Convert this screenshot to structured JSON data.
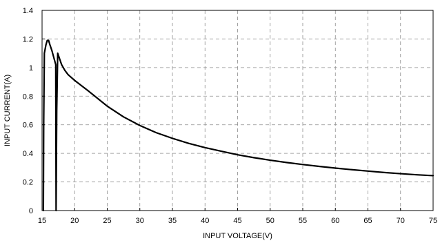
{
  "chart_data": {
    "type": "line",
    "title": "",
    "xlabel": "INPUT VOLTAGE(V)",
    "ylabel": "INPUT CURRENT(A)",
    "xlim": [
      15,
      75
    ],
    "ylim": [
      0,
      1.4
    ],
    "x_ticks": [
      15,
      20,
      25,
      30,
      35,
      40,
      45,
      50,
      55,
      60,
      65,
      70,
      75
    ],
    "y_ticks": [
      0,
      0.2,
      0.4,
      0.6,
      0.8,
      1,
      1.2,
      1.4
    ],
    "y_tick_labels": [
      "0",
      "0.2",
      "0.4",
      "0.6",
      "0.8",
      "1",
      "1.2",
      "1.4"
    ],
    "grid": true,
    "legend": "none",
    "series": [
      {
        "color": "#000000",
        "points": [
          [
            15.2,
            0
          ],
          [
            15.25,
            0.6
          ],
          [
            15.35,
            1.1
          ],
          [
            15.6,
            1.16
          ],
          [
            15.8,
            1.19
          ],
          [
            16.0,
            1.19
          ],
          [
            16.2,
            1.16
          ],
          [
            16.5,
            1.12
          ],
          [
            16.8,
            1.07
          ],
          [
            17.1,
            1.02
          ],
          [
            17.15,
            0
          ],
          [
            17.25,
            0.7
          ],
          [
            17.4,
            1.1
          ],
          [
            17.7,
            1.06
          ],
          [
            18.0,
            1.02
          ],
          [
            18.5,
            0.98
          ],
          [
            19.0,
            0.95
          ],
          [
            19.5,
            0.93
          ],
          [
            20,
            0.91
          ],
          [
            22,
            0.84
          ],
          [
            25,
            0.73
          ],
          [
            27.5,
            0.655
          ],
          [
            30,
            0.595
          ],
          [
            32.5,
            0.545
          ],
          [
            35,
            0.505
          ],
          [
            37.5,
            0.47
          ],
          [
            40,
            0.44
          ],
          [
            42.5,
            0.415
          ],
          [
            45,
            0.39
          ],
          [
            47.5,
            0.37
          ],
          [
            50,
            0.352
          ],
          [
            52.5,
            0.336
          ],
          [
            55,
            0.322
          ],
          [
            57.5,
            0.309
          ],
          [
            60,
            0.297
          ],
          [
            62.5,
            0.286
          ],
          [
            65,
            0.276
          ],
          [
            67.5,
            0.266
          ],
          [
            70,
            0.258
          ],
          [
            72.5,
            0.25
          ],
          [
            75,
            0.244
          ]
        ]
      }
    ]
  }
}
